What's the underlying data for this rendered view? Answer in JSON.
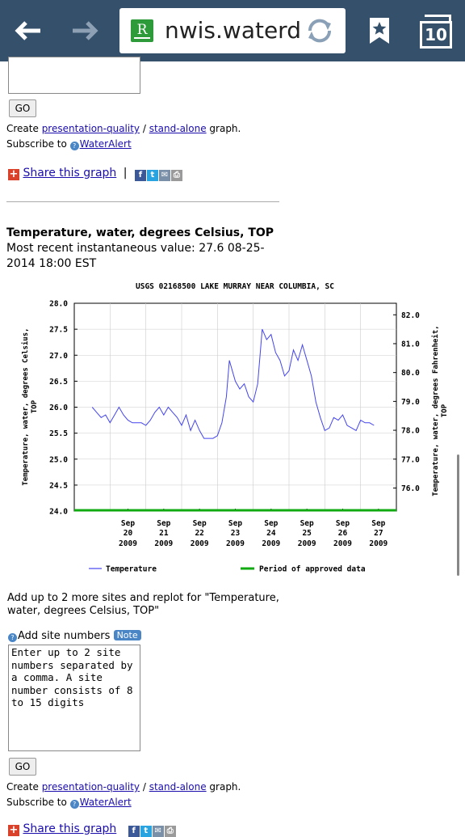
{
  "browser": {
    "url": "nwis.waterdata",
    "tab_count": "10",
    "favicon_letter": "R",
    "icons": [
      "back-arrow-icon",
      "forward-arrow-icon",
      "reload-icon",
      "bookmark-star-icon",
      "tabs-icon"
    ]
  },
  "top_section": {
    "go_label": "GO",
    "create_prefix": "Create ",
    "presentation_link": "presentation-quality",
    "slash": " / ",
    "standalone_link": "stand-alone",
    "graph_suffix": " graph.",
    "subscribe_prefix": "Subscribe to ",
    "wateralert_link": "WaterAlert",
    "share_link": "Share this graph",
    "share_sep": "|"
  },
  "parameter": {
    "title": "Temperature, water, degrees Celsius, TOP",
    "recent_line1": "Most recent instantaneous value: 27.6   08-25-",
    "recent_line2": "2014  18:00 EST"
  },
  "chart_data": {
    "type": "line",
    "title": "USGS 02168500 LAKE MURRAY NEAR COLUMBIA, SC",
    "ylabel": "Temperature, water, degrees Celsius,\nTOP",
    "ylabel_line1": "Temperature, water, degrees Celsius,",
    "ylabel_line2": "TOP",
    "y2label": "Temperature, water, degrees Fahrenheit,\nTOP",
    "y2label_line1": "Temperature, water, degrees Fahrenheit,",
    "y2label_line2": "TOP",
    "ylim": [
      24.0,
      28.0
    ],
    "yticks": [
      "28.0",
      "27.5",
      "27.0",
      "26.5",
      "26.0",
      "25.5",
      "25.0",
      "24.5",
      "24.0"
    ],
    "y2ticks": [
      "82.0",
      "81.0",
      "80.0",
      "79.0",
      "78.0",
      "77.0",
      "76.0"
    ],
    "y2_values": [
      82,
      81,
      80,
      79,
      78,
      77,
      76
    ],
    "xticks": [
      {
        "month": "Sep",
        "day": "20",
        "year": "2009"
      },
      {
        "month": "Sep",
        "day": "21",
        "year": "2009"
      },
      {
        "month": "Sep",
        "day": "22",
        "year": "2009"
      },
      {
        "month": "Sep",
        "day": "23",
        "year": "2009"
      },
      {
        "month": "Sep",
        "day": "24",
        "year": "2009"
      },
      {
        "month": "Sep",
        "day": "25",
        "year": "2009"
      },
      {
        "month": "Sep",
        "day": "26",
        "year": "2009"
      },
      {
        "month": "Sep",
        "day": "27",
        "year": "2009"
      }
    ],
    "xlim": [
      "2009-09-19",
      "2009-09-28"
    ],
    "grid": true,
    "series": [
      {
        "name": "Temperature",
        "color": "#4444ee",
        "points": [
          [
            "2009-09-19 12:00",
            26.0
          ],
          [
            "2009-09-19 15:00",
            25.9
          ],
          [
            "2009-09-19 18:00",
            25.8
          ],
          [
            "2009-09-19 21:00",
            25.85
          ],
          [
            "2009-09-20 00:00",
            25.7
          ],
          [
            "2009-09-20 03:00",
            25.85
          ],
          [
            "2009-09-20 06:00",
            26.0
          ],
          [
            "2009-09-20 09:00",
            25.85
          ],
          [
            "2009-09-20 12:00",
            25.75
          ],
          [
            "2009-09-20 15:00",
            25.7
          ],
          [
            "2009-09-20 18:00",
            25.7
          ],
          [
            "2009-09-20 21:00",
            25.7
          ],
          [
            "2009-09-21 00:00",
            25.65
          ],
          [
            "2009-09-21 03:00",
            25.75
          ],
          [
            "2009-09-21 06:00",
            25.9
          ],
          [
            "2009-09-21 09:00",
            26.0
          ],
          [
            "2009-09-21 12:00",
            25.85
          ],
          [
            "2009-09-21 15:00",
            26.0
          ],
          [
            "2009-09-21 18:00",
            25.9
          ],
          [
            "2009-09-21 21:00",
            25.8
          ],
          [
            "2009-09-22 00:00",
            25.65
          ],
          [
            "2009-09-22 03:00",
            25.85
          ],
          [
            "2009-09-22 06:00",
            25.55
          ],
          [
            "2009-09-22 09:00",
            25.75
          ],
          [
            "2009-09-22 12:00",
            25.55
          ],
          [
            "2009-09-22 15:00",
            25.4
          ],
          [
            "2009-09-22 18:00",
            25.4
          ],
          [
            "2009-09-22 21:00",
            25.4
          ],
          [
            "2009-09-23 00:00",
            25.45
          ],
          [
            "2009-09-23 03:00",
            25.7
          ],
          [
            "2009-09-23 06:00",
            26.2
          ],
          [
            "2009-09-23 08:00",
            26.9
          ],
          [
            "2009-09-23 12:00",
            26.5
          ],
          [
            "2009-09-23 15:00",
            26.35
          ],
          [
            "2009-09-23 18:00",
            26.45
          ],
          [
            "2009-09-23 21:00",
            26.2
          ],
          [
            "2009-09-24 00:00",
            26.1
          ],
          [
            "2009-09-24 03:00",
            26.45
          ],
          [
            "2009-09-24 06:00",
            27.5
          ],
          [
            "2009-09-24 09:00",
            27.3
          ],
          [
            "2009-09-24 12:00",
            27.4
          ],
          [
            "2009-09-24 15:00",
            27.05
          ],
          [
            "2009-09-24 18:00",
            26.9
          ],
          [
            "2009-09-24 21:00",
            26.6
          ],
          [
            "2009-09-25 00:00",
            26.7
          ],
          [
            "2009-09-25 03:00",
            27.1
          ],
          [
            "2009-09-25 06:00",
            26.9
          ],
          [
            "2009-09-25 09:00",
            27.2
          ],
          [
            "2009-09-25 12:00",
            26.9
          ],
          [
            "2009-09-25 15:00",
            26.6
          ],
          [
            "2009-09-25 18:00",
            26.1
          ],
          [
            "2009-09-25 21:00",
            25.8
          ],
          [
            "2009-09-26 00:00",
            25.55
          ],
          [
            "2009-09-26 03:00",
            25.6
          ],
          [
            "2009-09-26 06:00",
            25.8
          ],
          [
            "2009-09-26 09:00",
            25.75
          ],
          [
            "2009-09-26 12:00",
            25.85
          ],
          [
            "2009-09-26 15:00",
            25.65
          ],
          [
            "2009-09-26 18:00",
            25.6
          ],
          [
            "2009-09-26 21:00",
            25.55
          ],
          [
            "2009-09-27 00:00",
            25.75
          ],
          [
            "2009-09-27 03:00",
            25.7
          ],
          [
            "2009-09-27 06:00",
            25.7
          ],
          [
            "2009-09-27 09:00",
            25.65
          ]
        ]
      },
      {
        "name": "Period of approved data",
        "color": "#11aa11",
        "range": [
          "2009-09-19",
          "2009-09-28"
        ],
        "y": 24.0
      }
    ],
    "legend": [
      "Temperature",
      "Period of approved data"
    ],
    "legend_position": "bottom"
  },
  "bottom_section": {
    "add_text_line1": "Add up to 2 more sites and replot for \"Temperature,",
    "add_text_line2": "water, degrees Celsius, TOP\"",
    "add_site_label": "Add site numbers",
    "note_label": "Note",
    "textarea_value": "Enter up to 2 site\nnumbers separated by\na comma. A site\nnumber consists of 8\nto 15 digits",
    "go_label": "GO",
    "create_prefix": "Create ",
    "presentation_link": "presentation-quality",
    "slash": " / ",
    "standalone_link": "stand-alone",
    "graph_suffix": " graph.",
    "subscribe_prefix": "Subscribe to ",
    "wateralert_link": "WaterAlert",
    "share_link": "Share this graph"
  }
}
